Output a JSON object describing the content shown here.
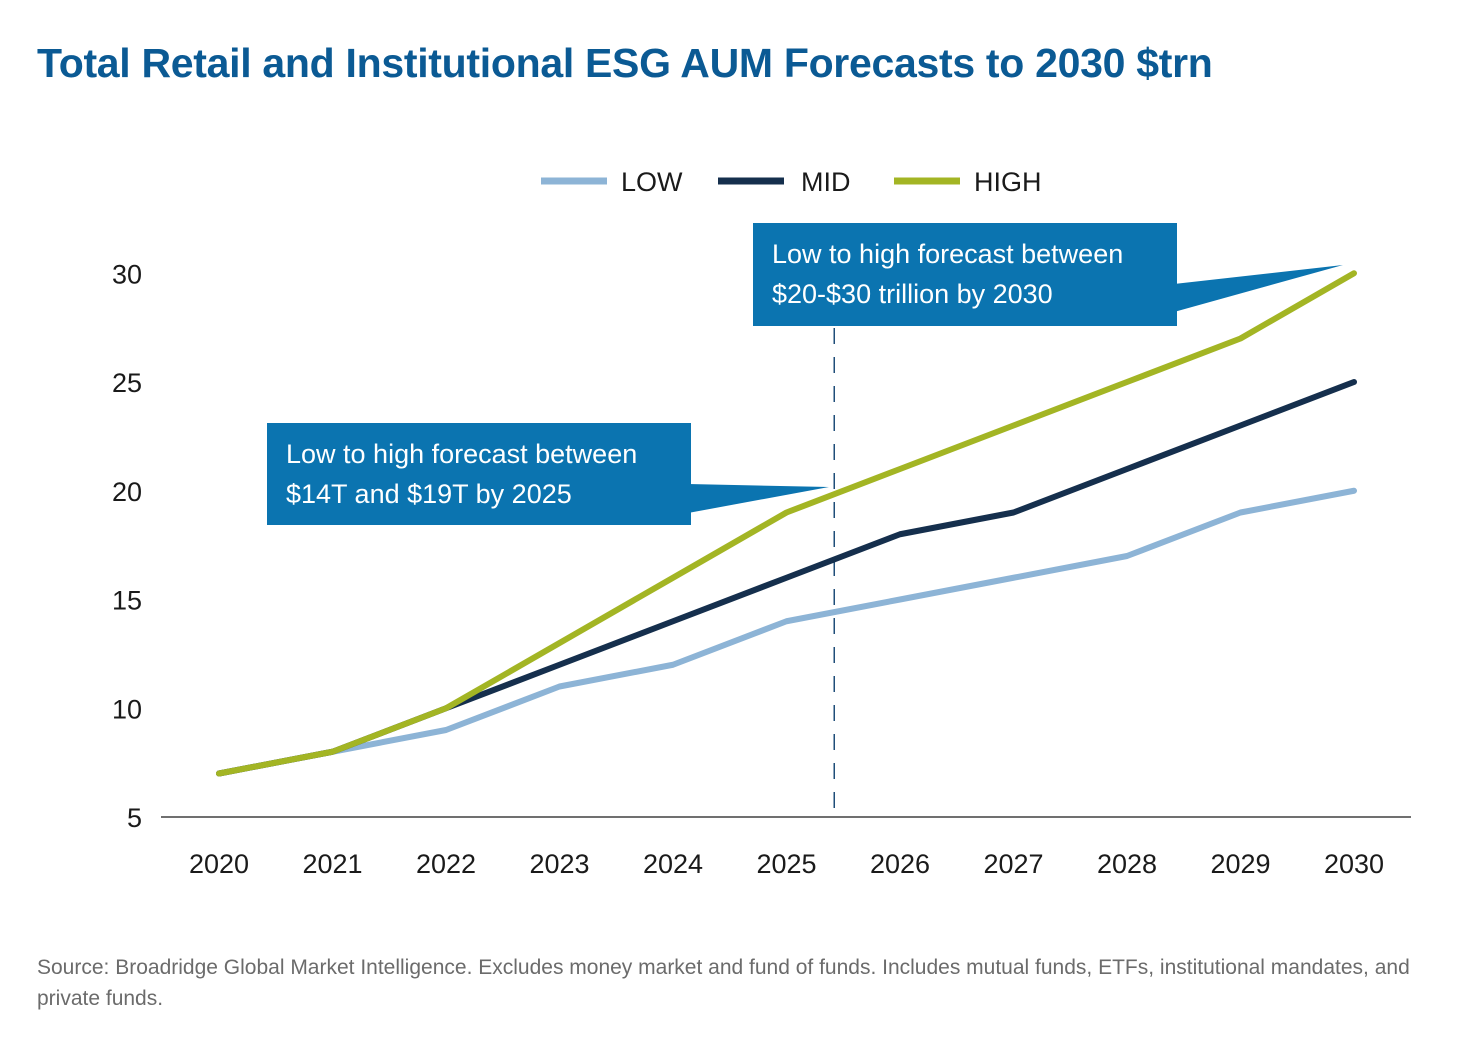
{
  "title": "Total Retail and Institutional ESG AUM Forecasts to 2030 $trn",
  "source_note": "Source: Broadridge Global Market Intelligence. Excludes money market and fund of funds. Includes mutual funds, ETFs, institutional mandates, and private funds.",
  "callouts": {
    "y2025": {
      "line1": "Low to high forecast between",
      "line2": " $14T and $19T by 2025"
    },
    "y2030": {
      "line1": "Low to high forecast between",
      "line2": "$20-$30 trillion by 2030"
    }
  },
  "colors": {
    "title": "#0b5a94",
    "callout": "#0b74b0",
    "low": "#8db4d6",
    "mid": "#152f4d",
    "high": "#a3b524"
  },
  "chart_data": {
    "type": "line",
    "title": "Total Retail and Institutional ESG AUM Forecasts to 2030 $trn",
    "xlabel": "",
    "ylabel": "",
    "categories": [
      "2020",
      "2021",
      "2022",
      "2023",
      "2024",
      "2025",
      "2026",
      "2027",
      "2028",
      "2029",
      "2030"
    ],
    "ylim": [
      5,
      30
    ],
    "yticks": [
      5,
      10,
      15,
      20,
      25,
      30
    ],
    "grid": false,
    "legend_position": "top-center",
    "reference_line": {
      "x_between": [
        "2025",
        "2026"
      ],
      "style": "dashed"
    },
    "series": [
      {
        "name": "LOW",
        "color": "#8db4d6",
        "values": [
          7,
          8,
          9,
          11,
          12,
          14,
          15,
          16,
          17,
          19,
          20
        ]
      },
      {
        "name": "MID",
        "color": "#152f4d",
        "values": [
          7,
          8,
          10,
          12,
          14,
          16,
          18,
          19,
          21,
          23,
          25
        ]
      },
      {
        "name": "HIGH",
        "color": "#a3b524",
        "values": [
          7,
          8,
          10,
          13,
          16,
          19,
          21,
          23,
          25,
          27,
          30
        ]
      }
    ]
  }
}
